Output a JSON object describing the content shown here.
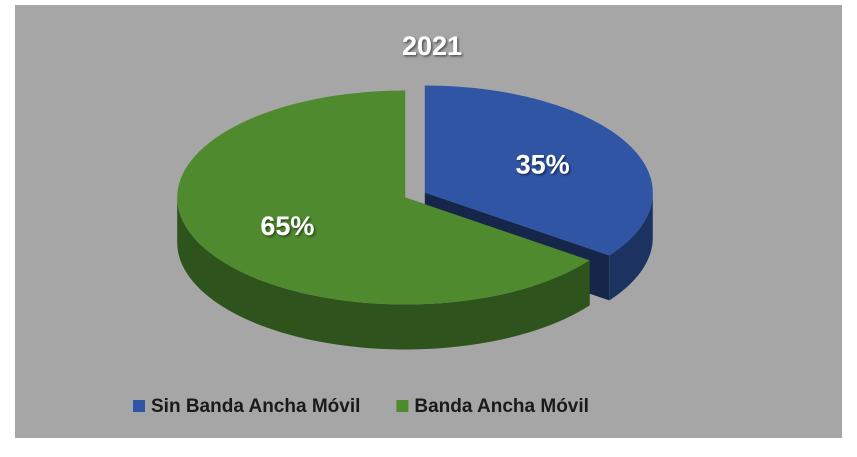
{
  "chart_data": {
    "type": "pie",
    "title": "2021",
    "categories": [
      "Sin Banda Ancha Móvil",
      "Banda Ancha Móvil"
    ],
    "values": [
      35,
      65
    ],
    "value_labels": [
      "35%",
      "65%"
    ],
    "colors": [
      "#2f55a4",
      "#4f8a2f"
    ],
    "legend": "bottom"
  }
}
